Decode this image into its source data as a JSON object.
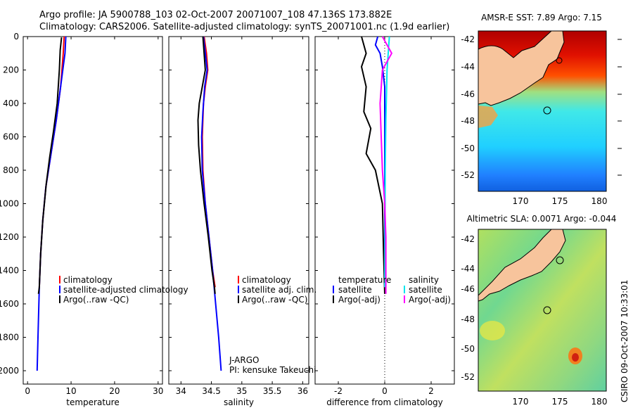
{
  "header": {
    "line1": "Argo profile: JA 5900788_103 02-Oct-2007 20071007_108 47.136S 173.882E",
    "line2": "Climatology: CARS2006. Satellite-adjusted climatology: synTS_20071001.nc (1.9d earlier)"
  },
  "colors": {
    "climatology": "#ff0000",
    "satellite": "#0000ff",
    "argo": "#000000",
    "sal_satellite": "#00e5ee",
    "sal_argo": "#ff00ff"
  },
  "chart_data": [
    {
      "id": "temperature",
      "type": "line",
      "xlabel": "temperature",
      "ylabel": "",
      "xlim": [
        -1,
        31
      ],
      "ylim": [
        2080,
        0
      ],
      "xticks": [
        0,
        10,
        20,
        30
      ],
      "xtick_labels": [
        "0",
        "10",
        "20",
        "30"
      ],
      "yticks": [
        0,
        200,
        400,
        600,
        800,
        1000,
        1200,
        1400,
        1600,
        1800,
        2000
      ],
      "ytick_labels": [
        "0",
        "200",
        "400",
        "600",
        "800",
        "1000",
        "1200",
        "1400",
        "1600",
        "1800",
        "2000"
      ],
      "legend": [
        "climatology",
        "satellite-adjusted climatology",
        "Argo(..raw -QC)"
      ],
      "series": [
        {
          "name": "climatology",
          "color": "#ff0000",
          "points": [
            [
              8.4,
              0
            ],
            [
              8.2,
              100
            ],
            [
              7.6,
              300
            ],
            [
              6.6,
              500
            ],
            [
              5.4,
              700
            ],
            [
              4.2,
              900
            ],
            [
              3.5,
              1100
            ],
            [
              3.0,
              1300
            ],
            [
              2.7,
              1500
            ]
          ]
        },
        {
          "name": "satellite-adjusted climatology",
          "color": "#0000ff",
          "points": [
            [
              8.8,
              0
            ],
            [
              8.6,
              100
            ],
            [
              8.2,
              180
            ],
            [
              7.6,
              300
            ],
            [
              6.6,
              500
            ],
            [
              5.4,
              700
            ],
            [
              4.2,
              900
            ],
            [
              3.5,
              1100
            ],
            [
              3.0,
              1300
            ],
            [
              2.7,
              1500
            ],
            [
              2.4,
              1800
            ],
            [
              2.2,
              2000
            ]
          ]
        },
        {
          "name": "Argo(..raw -QC)",
          "color": "#000000",
          "points": [
            [
              7.8,
              5
            ],
            [
              7.5,
              80
            ],
            [
              7.3,
              200
            ],
            [
              6.8,
              400
            ],
            [
              6.0,
              560
            ],
            [
              5.1,
              720
            ],
            [
              4.3,
              880
            ],
            [
              3.5,
              1100
            ],
            [
              3.0,
              1300
            ],
            [
              2.7,
              1500
            ],
            [
              2.5,
              1540
            ]
          ]
        }
      ]
    },
    {
      "id": "salinity",
      "type": "line",
      "xlabel": "salinity",
      "ylabel": "",
      "xlim": [
        33.8,
        36.1
      ],
      "ylim": [
        2080,
        0
      ],
      "xticks": [
        34,
        34.5,
        35,
        35.5,
        36
      ],
      "xtick_labels": [
        "34",
        "34.5",
        "35",
        "35.5",
        "36"
      ],
      "yticks": [
        0,
        200,
        400,
        600,
        800,
        1000,
        1200,
        1400,
        1600,
        1800,
        2000
      ],
      "legend": [
        "climatology",
        "satellite adj. clim.",
        "Argo(..raw -QC)"
      ],
      "annotation": [
        "J-ARGO",
        "PI: kensuke Takeuchi"
      ],
      "series": [
        {
          "name": "climatology",
          "color": "#ff0000",
          "points": [
            [
              34.38,
              0
            ],
            [
              34.42,
              100
            ],
            [
              34.44,
              200
            ],
            [
              34.4,
              300
            ],
            [
              34.37,
              400
            ],
            [
              34.35,
              600
            ],
            [
              34.36,
              800
            ],
            [
              34.4,
              1000
            ],
            [
              34.46,
              1200
            ],
            [
              34.52,
              1400
            ],
            [
              34.56,
              1500
            ]
          ]
        },
        {
          "name": "satellite adj. clim.",
          "color": "#0000ff",
          "points": [
            [
              34.37,
              0
            ],
            [
              34.4,
              100
            ],
            [
              34.43,
              200
            ],
            [
              34.39,
              300
            ],
            [
              34.36,
              450
            ],
            [
              34.34,
              600
            ],
            [
              34.35,
              800
            ],
            [
              34.4,
              1000
            ],
            [
              34.46,
              1200
            ],
            [
              34.52,
              1400
            ],
            [
              34.57,
              1600
            ],
            [
              34.62,
              1800
            ],
            [
              34.66,
              2000
            ]
          ]
        },
        {
          "name": "Argo(..raw -QC)",
          "color": "#000000",
          "points": [
            [
              34.36,
              0
            ],
            [
              34.38,
              100
            ],
            [
              34.4,
              200
            ],
            [
              34.35,
              300
            ],
            [
              34.3,
              400
            ],
            [
              34.28,
              500
            ],
            [
              34.29,
              650
            ],
            [
              34.32,
              800
            ],
            [
              34.38,
              1000
            ],
            [
              34.45,
              1200
            ],
            [
              34.51,
              1400
            ],
            [
              34.55,
              1500
            ],
            [
              34.56,
              1540
            ]
          ]
        }
      ]
    },
    {
      "id": "difference",
      "type": "line",
      "xlabel": "difference from climatology",
      "ylabel": "",
      "xlim": [
        -3,
        3
      ],
      "ylim": [
        2080,
        0
      ],
      "xticks": [
        -2,
        0,
        2
      ],
      "xtick_labels": [
        "-2",
        "0",
        "2"
      ],
      "yticks": [
        0,
        200,
        400,
        600,
        800,
        1000,
        1200,
        1400,
        1600,
        1800,
        2000
      ],
      "legend_temperature": {
        "heading": "temperature",
        "items": [
          "satellite",
          "Argo(-adj)"
        ]
      },
      "legend_salinity": {
        "heading": "salinity",
        "items": [
          "satellite",
          "Argo(-adj)"
        ]
      },
      "series": [
        {
          "name": "temperature satellite",
          "color": "#0000ff",
          "points": [
            [
              -0.3,
              0
            ],
            [
              -0.4,
              50
            ],
            [
              -0.2,
              100
            ],
            [
              -0.1,
              180
            ],
            [
              0,
              300
            ],
            [
              0,
              1500
            ]
          ]
        },
        {
          "name": "temperature Argo(-adj)",
          "color": "#000000",
          "points": [
            [
              -1.0,
              0
            ],
            [
              -0.8,
              100
            ],
            [
              -1.0,
              180
            ],
            [
              -0.8,
              300
            ],
            [
              -0.9,
              450
            ],
            [
              -0.6,
              550
            ],
            [
              -0.8,
              700
            ],
            [
              -0.4,
              800
            ],
            [
              -0.1,
              1000
            ],
            [
              -0.05,
              1300
            ],
            [
              0,
              1540
            ]
          ]
        },
        {
          "name": "salinity satellite",
          "color": "#00e5ee",
          "points": [
            [
              0.2,
              0
            ],
            [
              0.1,
              200
            ],
            [
              0.05,
              500
            ],
            [
              0.02,
              800
            ],
            [
              0,
              1500
            ]
          ]
        },
        {
          "name": "salinity Argo(-adj)",
          "color": "#ff00ff",
          "points": [
            [
              -0.1,
              0
            ],
            [
              0.3,
              100
            ],
            [
              -0.1,
              200
            ],
            [
              -0.2,
              400
            ],
            [
              -0.15,
              600
            ],
            [
              -0.1,
              800
            ],
            [
              0,
              1000
            ],
            [
              0.05,
              1200
            ],
            [
              0.05,
              1540
            ]
          ]
        }
      ]
    }
  ],
  "maps": {
    "sst": {
      "title": "AMSR-E SST: 7.89  Argo: 7.15",
      "xticks": [
        "170",
        "175",
        "180"
      ],
      "yticks": [
        "-42",
        "-44",
        "-46",
        "-48",
        "-50",
        "-52"
      ]
    },
    "sla": {
      "title": "Altimetric SLA: 0.0071  Argo: -0.044",
      "xticks": [
        "170",
        "175",
        "180"
      ],
      "yticks": [
        "-42",
        "-44",
        "-46",
        "-48",
        "-50",
        "-52"
      ]
    }
  },
  "watermark": "CSIRO 09-Oct-2007 10:33:01"
}
